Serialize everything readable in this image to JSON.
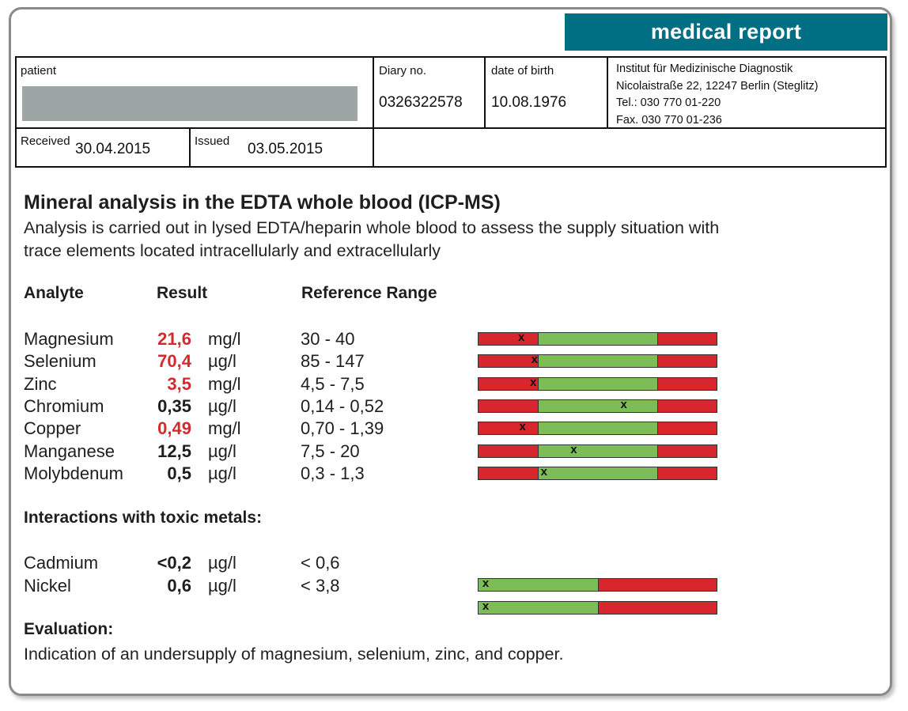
{
  "banner": "medical report",
  "header": {
    "patient_label": "patient",
    "diary_label": "Diary no.",
    "diary_value": "0326322578",
    "dob_label": "date of birth",
    "dob_value": "10.08.1976",
    "institute": {
      "name": "Institut für Medizinische Diagnostik",
      "address": "Nicolaistraße 22, 12247 Berlin (Steglitz)",
      "tel": "Tel.: 030 770 01-220",
      "fax": "Fax. 030 770 01-236"
    },
    "received_label": "Received",
    "received_value": "30.04.2015",
    "issued_label": "Issued",
    "issued_value": "03.05.2015"
  },
  "title": "Mineral analysis in the EDTA whole blood (ICP-MS)",
  "description_line1": "Analysis is carried out in lysed EDTA/heparin whole blood to assess the supply situation with",
  "description_line2": "trace elements located intracellularly and extracellularly",
  "columns": {
    "analyte": "Analyte",
    "result": "Result",
    "reference": "Reference Range"
  },
  "colors": {
    "low": "#d42a2e",
    "bar_red": "#d7262d",
    "bar_green": "#7cbd58",
    "banner": "#006f84"
  },
  "analytes": [
    {
      "name": "Magnesium",
      "result": "21,6",
      "unit": "mg/l",
      "ref": "30 - 40",
      "low": true,
      "marker": 0.18
    },
    {
      "name": "Selenium",
      "result": "70,4",
      "unit": "µg/l",
      "ref": "85 - 147",
      "low": true,
      "marker": 0.235
    },
    {
      "name": "Zinc",
      "result": "3,5",
      "unit": "mg/l",
      "ref": "4,5 - 7,5",
      "low": true,
      "marker": 0.23
    },
    {
      "name": "Chromium",
      "result": "0,35",
      "unit": "µg/l",
      "ref": "0,14 - 0,52",
      "low": false,
      "marker": 0.61
    },
    {
      "name": "Copper",
      "result": "0,49",
      "unit": "mg/l",
      "ref": "0,70 - 1,39",
      "low": true,
      "marker": 0.185
    },
    {
      "name": "Manganese",
      "result": "12,5",
      "unit": "µg/l",
      "ref": "7,5 - 20",
      "low": false,
      "marker": 0.4
    },
    {
      "name": "Molybdenum",
      "result": "0,5",
      "unit": "µg/l",
      "ref": "0,3 - 1,3",
      "low": false,
      "marker": 0.275
    }
  ],
  "toxic_title": "Interactions with toxic metals:",
  "toxic": [
    {
      "name": "Cadmium",
      "result": "<0,2",
      "unit": "µg/l",
      "ref": "< 0,6",
      "low": false
    },
    {
      "name": "Nickel",
      "result": "0,6",
      "unit": "µg/l",
      "ref": "< 3,8",
      "low": false
    }
  ],
  "toxic_bars": [
    {
      "marker": 0.03
    },
    {
      "marker": 0.03
    }
  ],
  "evaluation_title": "Evaluation:",
  "evaluation_text": "Indication of an undersupply of magnesium, selenium, zinc, and copper."
}
